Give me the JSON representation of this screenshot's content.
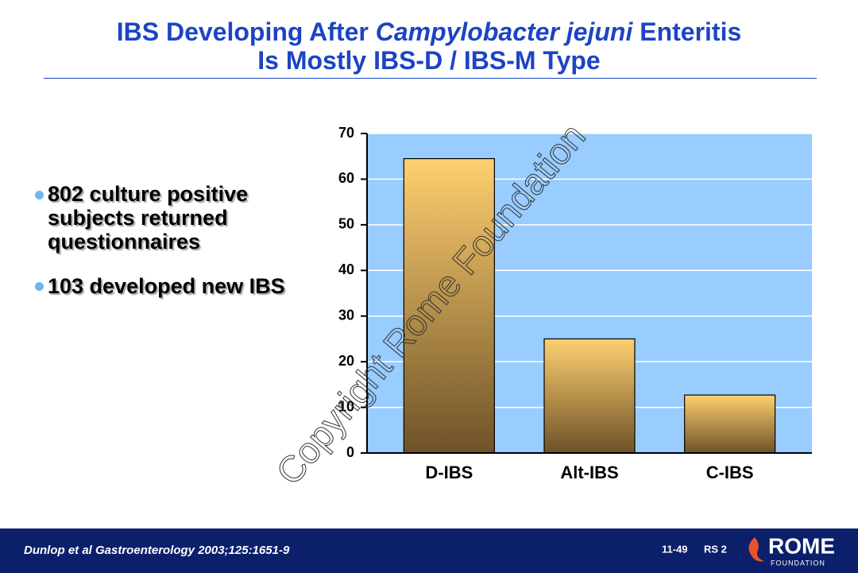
{
  "title": {
    "line1": [
      "IBS Developing After",
      "Campylobacter jejuni",
      "Enteritis"
    ],
    "line2": "Is Mostly IBS-D / IBS-M Type"
  },
  "bullets": [
    "802 culture positive subjects returned questionnaires",
    "103 developed new IBS"
  ],
  "watermark": "Copyright Rome Foundation",
  "chart_data": {
    "type": "bar",
    "categories": [
      "D-IBS",
      "Alt-IBS",
      "C-IBS"
    ],
    "values": [
      64.5,
      25,
      12.7
    ],
    "ylim": [
      0,
      70
    ],
    "yticks": [
      0,
      10,
      20,
      30,
      40,
      50,
      60,
      70
    ],
    "grid": true,
    "background": "#99ccff",
    "color": [
      "#ffd070",
      "#6e5228"
    ]
  },
  "footer": {
    "citation": "Dunlop et al Gastroenterology 2003;125:1651-9",
    "slide": "11-49",
    "code": "RS 2",
    "logo": "ROME",
    "logo_sub": "FOUNDATION"
  }
}
